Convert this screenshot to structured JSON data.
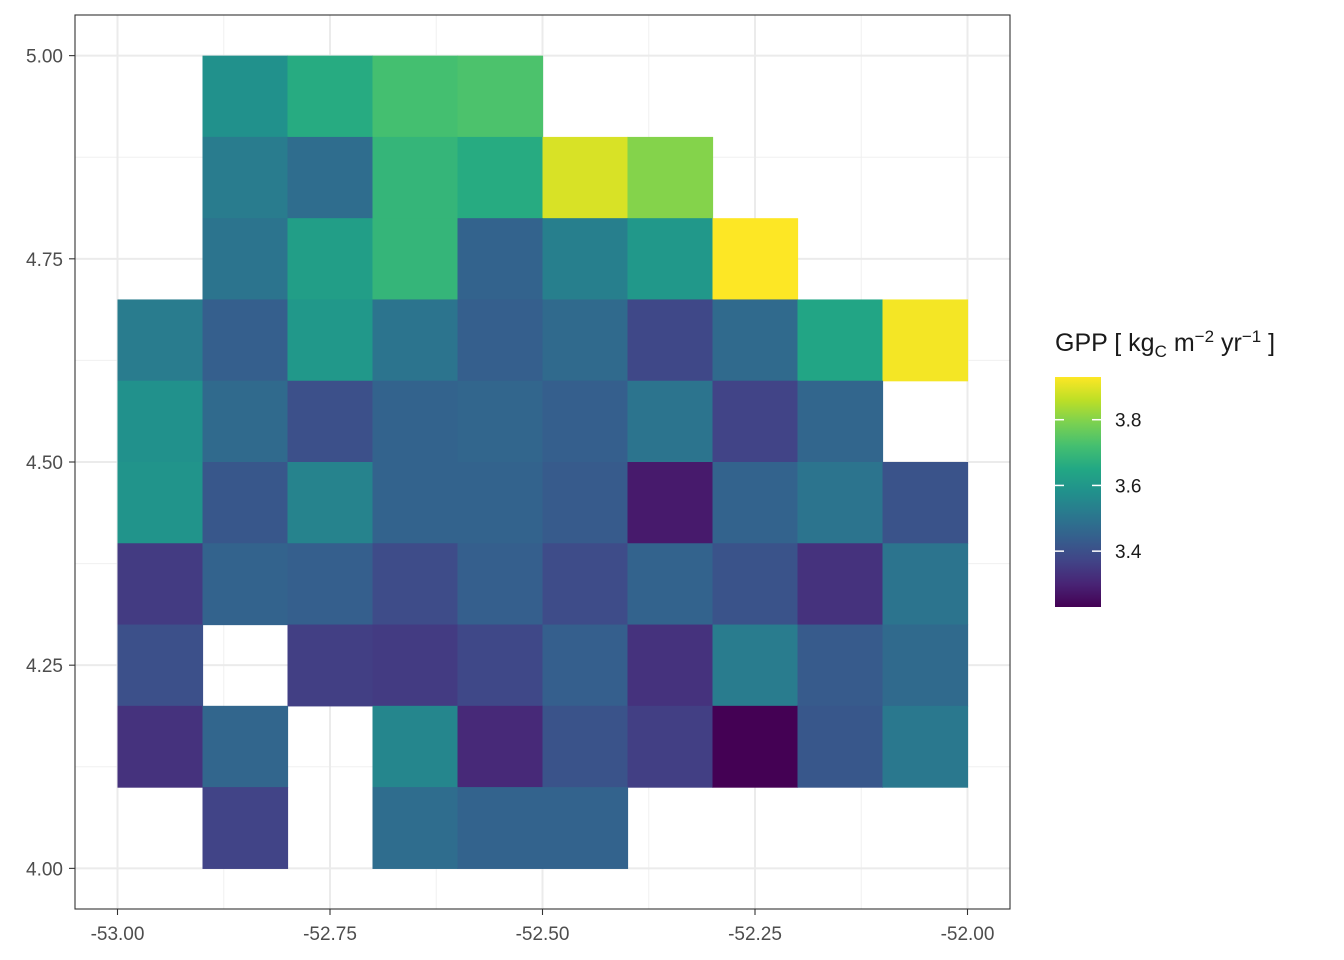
{
  "chart_data": {
    "type": "heatmap",
    "title": "",
    "xlabel": "",
    "ylabel": "",
    "xlim": [
      -53.05,
      -51.95
    ],
    "ylim": [
      3.95,
      5.05
    ],
    "x_ticks": [
      -53.0,
      -52.75,
      -52.5,
      -52.25,
      -52.0
    ],
    "x_tick_labels": [
      "-53.00",
      "-52.75",
      "-52.50",
      "-52.25",
      "-52.00"
    ],
    "y_ticks": [
      4.0,
      4.25,
      4.5,
      4.75,
      5.0
    ],
    "y_tick_labels": [
      "4.00",
      "4.25",
      "4.50",
      "4.75",
      "5.00"
    ],
    "grid": true,
    "cell_size": 0.1,
    "x_centers": [
      -52.95,
      -52.85,
      -52.75,
      -52.65,
      -52.55,
      -52.45,
      -52.35,
      -52.25,
      -52.15,
      -52.05
    ],
    "y_centers": [
      4.95,
      4.85,
      4.75,
      4.65,
      4.55,
      4.45,
      4.35,
      4.25,
      4.15,
      4.05
    ],
    "values": [
      [
        null,
        3.58,
        3.66,
        3.72,
        3.73,
        null,
        null,
        null,
        null,
        null
      ],
      [
        null,
        3.52,
        3.48,
        3.69,
        3.66,
        3.89,
        3.8,
        null,
        null,
        null
      ],
      [
        null,
        3.5,
        3.62,
        3.69,
        3.45,
        3.53,
        3.6,
        3.93,
        null,
        null
      ],
      [
        3.52,
        3.44,
        3.6,
        3.5,
        3.44,
        3.47,
        3.38,
        3.47,
        3.64,
        3.92
      ],
      [
        3.58,
        3.47,
        3.4,
        3.45,
        3.46,
        3.44,
        3.5,
        3.37,
        3.46,
        null
      ],
      [
        3.59,
        3.42,
        3.54,
        3.45,
        3.45,
        3.43,
        3.28,
        3.45,
        3.5,
        3.41
      ],
      [
        3.35,
        3.45,
        3.44,
        3.39,
        3.44,
        3.39,
        3.45,
        3.41,
        3.33,
        3.5
      ],
      [
        3.4,
        null,
        3.36,
        3.35,
        3.38,
        3.44,
        3.33,
        3.52,
        3.43,
        3.47
      ],
      [
        3.33,
        3.46,
        null,
        3.55,
        3.31,
        3.41,
        3.36,
        3.23,
        3.42,
        3.51
      ],
      [
        null,
        3.37,
        null,
        3.48,
        3.45,
        3.45,
        null,
        null,
        null,
        null
      ]
    ],
    "colorscale": "viridis",
    "value_range": [
      3.23,
      3.93
    ],
    "legend": {
      "title_main": "GPP [ kg",
      "title_sub": "C",
      "title_m": " m",
      "title_exp1": "−2",
      "title_yr": " yr",
      "title_exp2": "−1",
      "title_end": " ]",
      "ticks": [
        3.4,
        3.6,
        3.8
      ],
      "tick_labels": [
        "3.4",
        "3.6",
        "3.8"
      ],
      "position": "right"
    }
  }
}
